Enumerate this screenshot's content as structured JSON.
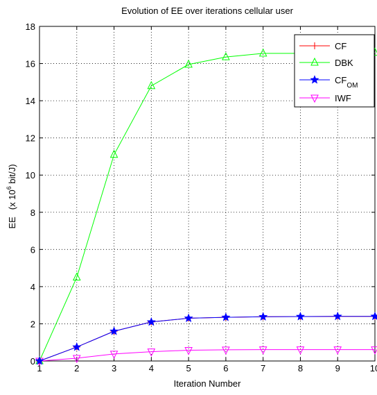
{
  "chart_data": {
    "type": "line",
    "title": "Evolution of EE over iterations cellular user",
    "xlabel": "Iteration Number",
    "ylabel": "EE",
    "ylabel_unit_prefix": "(x 10",
    "ylabel_unit_exponent": "6",
    "ylabel_unit_suffix": " bit/J)",
    "x": [
      1,
      2,
      3,
      4,
      5,
      6,
      7,
      8,
      9,
      10
    ],
    "xlim": [
      1,
      10
    ],
    "ylim": [
      0,
      18
    ],
    "xticks": [
      1,
      2,
      3,
      4,
      5,
      6,
      7,
      8,
      9,
      10
    ],
    "yticks": [
      0,
      2,
      4,
      6,
      8,
      10,
      12,
      14,
      16,
      18
    ],
    "grid": true,
    "legend_position": "top-right",
    "series": [
      {
        "name": "CF",
        "name_sub": "",
        "color": "#ff0000",
        "marker": "plus",
        "values": [
          0,
          0.75,
          1.6,
          2.1,
          2.3,
          2.35,
          2.38,
          2.39,
          2.4,
          2.4
        ]
      },
      {
        "name": "DBK",
        "name_sub": "",
        "color": "#00ff00",
        "marker": "triangle-up",
        "values": [
          0,
          4.5,
          11.1,
          14.8,
          15.95,
          16.35,
          16.55,
          16.55,
          16.6,
          16.6
        ]
      },
      {
        "name": "CF",
        "name_sub": "OM",
        "color": "#0000ff",
        "marker": "star",
        "values": [
          0,
          0.75,
          1.6,
          2.1,
          2.3,
          2.35,
          2.38,
          2.39,
          2.4,
          2.4
        ]
      },
      {
        "name": "IWF",
        "name_sub": "",
        "color": "#ff00ff",
        "marker": "triangle-down",
        "values": [
          0,
          0.15,
          0.38,
          0.5,
          0.58,
          0.6,
          0.61,
          0.61,
          0.61,
          0.61
        ]
      }
    ]
  }
}
